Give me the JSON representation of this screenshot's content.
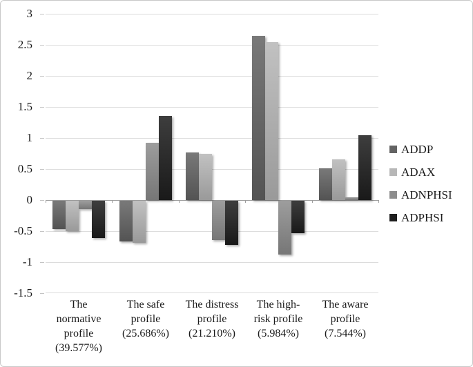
{
  "figure": {
    "background": "#ffffff",
    "border_color": "#c8c8c8",
    "text_color": "#1a1a1a"
  },
  "chart_data": {
    "type": "bar",
    "title": "",
    "xlabel": "",
    "ylabel": "",
    "categories": [
      "The\nnormative\nprofile\n(39.577%)",
      "The safe\nprofile\n(25.686%)",
      "The distress\nprofile\n(21.210%)",
      "The high-\nrisk profile\n(5.984%)",
      "The aware\nprofile\n(7.544%)"
    ],
    "series": [
      {
        "name": "ADDP",
        "color": "#636363",
        "values": [
          -0.46,
          -0.66,
          0.77,
          2.64,
          0.51
        ]
      },
      {
        "name": "ADAX",
        "color": "#b7b7b7",
        "values": [
          -0.49,
          -0.68,
          0.74,
          2.54,
          0.66
        ]
      },
      {
        "name": "ADNPHSI",
        "color": "#8d8d8d",
        "values": [
          -0.13,
          0.92,
          -0.63,
          -0.87,
          0.04
        ]
      },
      {
        "name": "ADPHSI",
        "color": "#1e1e1e",
        "values": [
          -0.6,
          1.36,
          -0.71,
          -0.52,
          1.04
        ]
      }
    ],
    "ylim": [
      -1.5,
      3
    ],
    "ytick_step": 0.5,
    "ytick_labels": [
      "3",
      "2.5",
      "2",
      "1.5",
      "1",
      "0.5",
      "0",
      "-0.5",
      "-1",
      "-1.5"
    ],
    "grid": true,
    "grid_color": "#dcdcdc",
    "axis_color": "#9e9e9e",
    "legend_position": "right"
  }
}
